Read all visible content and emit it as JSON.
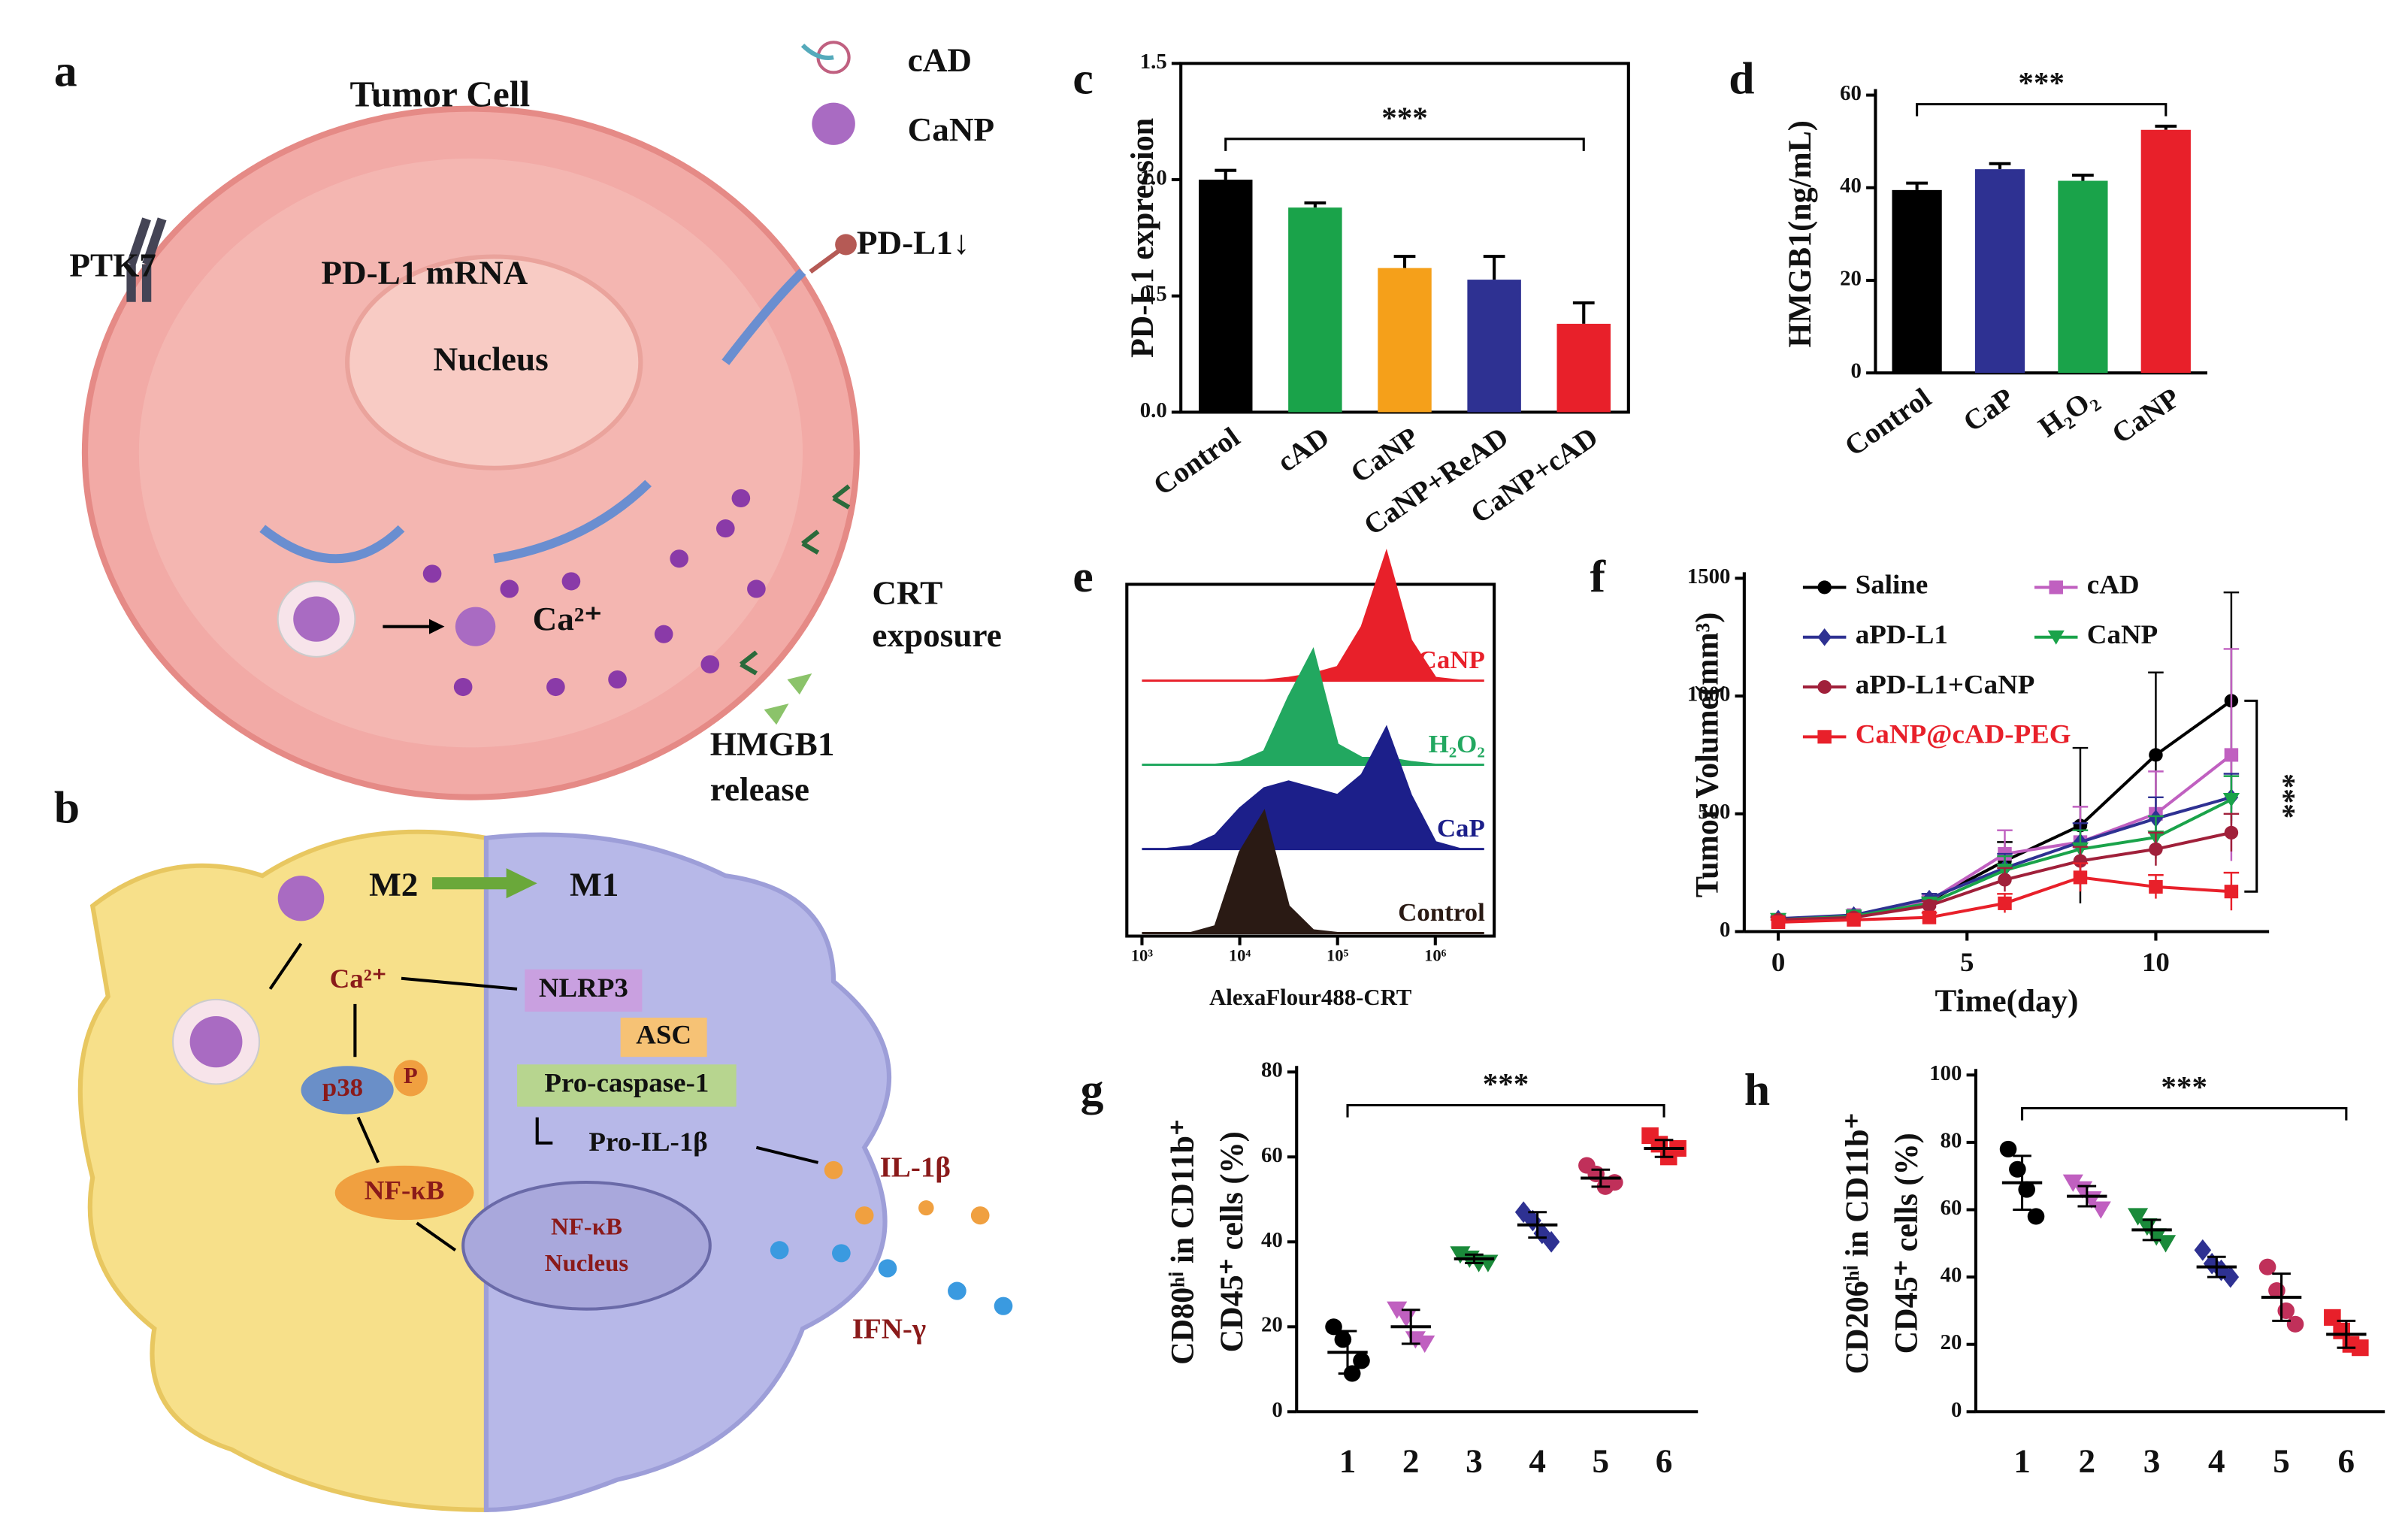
{
  "figure_a": {
    "label": "a",
    "title": "Tumor Cell",
    "legend": [
      "cAD",
      "CaNP"
    ],
    "labels": [
      "PTK7",
      "PD-L1 mRNA",
      "PD-L1↓",
      "Nucleus",
      "Ca²⁺",
      "CRT",
      "exposure",
      "HMGB1",
      "release"
    ]
  },
  "figure_b": {
    "label": "b",
    "labels": [
      "M2",
      "M1",
      "Ca²⁺",
      "NLRP3",
      "ASC",
      "Pro-caspase-1",
      "Pro-IL-1β",
      "p38",
      "P",
      "NF-κB",
      "NF-κB",
      "Nucleus",
      "IL-1β",
      "IFN-γ"
    ]
  },
  "chart_data": [
    {
      "type": "bar",
      "panel": "c",
      "ylabel": "PD-L1 expression",
      "categories": [
        "Control",
        "cAD",
        "CaNP",
        "CaNP+ReAD",
        "CaNP+cAD"
      ],
      "values": [
        1.0,
        0.88,
        0.62,
        0.57,
        0.38
      ],
      "errors": [
        0.04,
        0.02,
        0.05,
        0.1,
        0.09
      ],
      "colors": [
        "#000000",
        "#1aa34a",
        "#f5a01a",
        "#2e3192",
        "#e8202a"
      ],
      "ylim": [
        0,
        1.5
      ],
      "yticks": [
        {
          "value": 0,
          "label": "0.0"
        },
        0.5,
        {
          "value": 1,
          "label": "1.0"
        },
        1.5
      ],
      "frame": "box",
      "annotation": "***"
    },
    {
      "type": "bar",
      "panel": "d",
      "ylabel": "HMGB1(ng/mL)",
      "categories": [
        "Control",
        "CaP",
        "H₂O₂",
        "CaNP"
      ],
      "values": [
        39.5,
        44,
        41.5,
        52.5
      ],
      "errors": [
        1.5,
        1.2,
        1.2,
        0.8
      ],
      "colors": [
        "#000000",
        "#2e3192",
        "#1aa34a",
        "#e8202a"
      ],
      "ylim": [
        0,
        60
      ],
      "yticks": [
        0,
        20,
        40,
        60
      ],
      "frame": "left",
      "annotation": "***"
    },
    {
      "type": "density",
      "panel": "e",
      "xlabel": "AlexaFlour488-CRT",
      "xscale": "log",
      "x": [
        1000,
        1778,
        3162,
        5623,
        10000,
        17783,
        31623,
        56234,
        100000,
        177828,
        316228,
        562341,
        1000000,
        1778279,
        3162278
      ],
      "xlim": [
        700,
        4000000
      ],
      "xticks": [
        {
          "value": 1000,
          "label": "10³"
        },
        {
          "value": 10000,
          "label": "10⁴"
        },
        {
          "value": 100000,
          "label": "10⁵"
        },
        {
          "value": 1000000,
          "label": "10⁶"
        }
      ],
      "series": [
        {
          "name": "CaNP",
          "color": "#e8202a",
          "values": [
            0,
            0,
            0,
            0,
            0,
            0,
            0.02,
            0.05,
            0.1,
            0.4,
            0.95,
            0.3,
            0.02,
            0,
            0
          ]
        },
        {
          "name": "H₂O₂",
          "color": "#22a860",
          "values": [
            0,
            0,
            0,
            0,
            0.02,
            0.1,
            0.5,
            0.85,
            0.15,
            0.05,
            0.05,
            0.02,
            0,
            0,
            0
          ]
        },
        {
          "name": "CaP",
          "color": "#1c1f8a",
          "values": [
            0,
            0,
            0.02,
            0.1,
            0.3,
            0.45,
            0.5,
            0.45,
            0.4,
            0.55,
            0.9,
            0.4,
            0.05,
            0,
            0
          ]
        },
        {
          "name": "Control",
          "color": "#2a1a14",
          "values": [
            0,
            0,
            0,
            0.05,
            0.6,
            0.9,
            0.2,
            0.02,
            0,
            0,
            0,
            0,
            0,
            0,
            0
          ]
        }
      ]
    },
    {
      "type": "line",
      "panel": "f",
      "xlabel": "Time(day)",
      "ylabel": "Tumor Volume(mm³)",
      "x": [
        0,
        2,
        4,
        6,
        8,
        10,
        12
      ],
      "xlim": [
        -0.9,
        13
      ],
      "xticks": [
        0,
        5,
        10
      ],
      "ylim": [
        0,
        1500
      ],
      "yticks": [
        0,
        500,
        1000,
        1500
      ],
      "annotation": "***",
      "series": [
        {
          "name": "Saline",
          "color": "#000000",
          "marker": "circle",
          "values": [
            50,
            60,
            130,
            300,
            450,
            750,
            980
          ],
          "errors": [
            10,
            15,
            30,
            80,
            330,
            350,
            460
          ]
        },
        {
          "name": "cAD",
          "color": "#c060c0",
          "marker": "square",
          "values": [
            50,
            70,
            130,
            330,
            380,
            500,
            750
          ],
          "errors": [
            10,
            15,
            20,
            100,
            150,
            180,
            450
          ]
        },
        {
          "name": "aPD-L1",
          "color": "#2e3192",
          "marker": "diamond",
          "values": [
            55,
            70,
            140,
            270,
            380,
            480,
            570
          ],
          "errors": [
            10,
            15,
            20,
            60,
            80,
            90,
            100
          ]
        },
        {
          "name": "CaNP",
          "color": "#1aa34a",
          "marker": "triangle",
          "values": [
            50,
            65,
            120,
            260,
            350,
            400,
            560
          ],
          "errors": [
            10,
            15,
            20,
            60,
            80,
            90,
            100
          ]
        },
        {
          "name": "aPD-L1+CaNP",
          "color": "#a0203a",
          "marker": "circle",
          "values": [
            50,
            60,
            110,
            220,
            300,
            350,
            420
          ],
          "errors": [
            10,
            10,
            20,
            50,
            60,
            70,
            80
          ]
        },
        {
          "name": "CaNP@cAD-PEG",
          "color": "#e8202a",
          "marker": "square",
          "values": [
            40,
            50,
            60,
            120,
            230,
            190,
            170
          ],
          "errors": [
            10,
            10,
            20,
            40,
            60,
            50,
            80
          ]
        }
      ]
    },
    {
      "type": "dot",
      "panel": "g",
      "ylabel": [
        "CD80ʰⁱ in CD11b⁺",
        "CD45⁺ cells (%)"
      ],
      "categories": [
        "1",
        "2",
        "3",
        "4",
        "5",
        "6"
      ],
      "ylim": [
        0,
        80
      ],
      "yticks": [
        0,
        20,
        40,
        60,
        80
      ],
      "annotation": "***",
      "groups": [
        {
          "color": "#000000",
          "marker": "circle",
          "values": [
            20,
            17,
            9,
            12
          ],
          "mean": 14,
          "error": 5
        },
        {
          "color": "#c060c0",
          "marker": "triangle",
          "values": [
            24,
            22,
            17,
            16
          ],
          "mean": 20,
          "error": 4
        },
        {
          "color": "#1a8a3a",
          "marker": "triangle",
          "values": [
            37,
            36,
            35,
            35
          ],
          "mean": 36,
          "error": 1
        },
        {
          "color": "#2e3192",
          "marker": "diamond",
          "values": [
            47,
            45,
            42,
            40
          ],
          "mean": 44,
          "error": 3
        },
        {
          "color": "#c0305a",
          "marker": "circle",
          "values": [
            58,
            56,
            53,
            54
          ],
          "mean": 55,
          "error": 2
        },
        {
          "color": "#e8202a",
          "marker": "square",
          "values": [
            65,
            63,
            60,
            62
          ],
          "mean": 62,
          "error": 2
        }
      ]
    },
    {
      "type": "dot",
      "panel": "h",
      "ylabel": [
        "CD206ʰⁱ in CD11b⁺",
        "CD45⁺ cells (%)"
      ],
      "categories": [
        "1",
        "2",
        "3",
        "4",
        "5",
        "6"
      ],
      "ylim": [
        0,
        100
      ],
      "yticks": [
        0,
        20,
        40,
        60,
        80,
        100
      ],
      "annotation": "***",
      "groups": [
        {
          "color": "#000000",
          "marker": "circle",
          "values": [
            78,
            72,
            66,
            58
          ],
          "mean": 68,
          "error": 8
        },
        {
          "color": "#c060c0",
          "marker": "triangle",
          "values": [
            68,
            66,
            63,
            60
          ],
          "mean": 64,
          "error": 3
        },
        {
          "color": "#1a8a3a",
          "marker": "triangle",
          "values": [
            58,
            55,
            52,
            50
          ],
          "mean": 54,
          "error": 3
        },
        {
          "color": "#2e3192",
          "marker": "diamond",
          "values": [
            48,
            44,
            42,
            40
          ],
          "mean": 43,
          "error": 3
        },
        {
          "color": "#c0305a",
          "marker": "circle",
          "values": [
            43,
            36,
            30,
            26
          ],
          "mean": 34,
          "error": 7
        },
        {
          "color": "#e8202a",
          "marker": "square",
          "values": [
            28,
            24,
            20,
            19
          ],
          "mean": 23,
          "error": 4
        }
      ]
    }
  ]
}
